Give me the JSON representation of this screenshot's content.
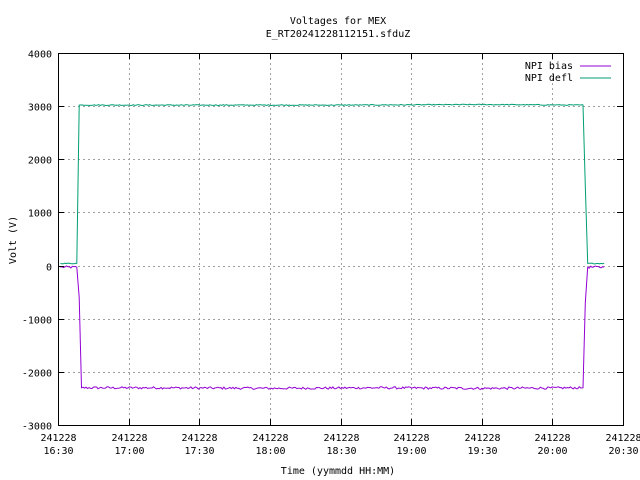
{
  "chart_data": {
    "type": "line",
    "title": "Voltages for MEX",
    "subtitle": "E_RT20241228112151.sfduZ",
    "xlabel": "Time (yymmdd HH:MM)",
    "ylabel": "Volt (V)",
    "xlim": [
      "241228 16:30",
      "241228 20:30"
    ],
    "ylim": [
      -3000,
      4000
    ],
    "x_ticks": [
      {
        "date": "241228",
        "time": "16:30"
      },
      {
        "date": "241228",
        "time": "17:00"
      },
      {
        "date": "241228",
        "time": "17:30"
      },
      {
        "date": "241228",
        "time": "18:00"
      },
      {
        "date": "241228",
        "time": "18:30"
      },
      {
        "date": "241228",
        "time": "19:00"
      },
      {
        "date": "241228",
        "time": "19:30"
      },
      {
        "date": "241228",
        "time": "20:00"
      },
      {
        "date": "241228",
        "time": "20:30"
      }
    ],
    "y_ticks": [
      "4000",
      "3000",
      "2000",
      "1000",
      "0",
      "-1000",
      "-2000",
      "-3000"
    ],
    "grid": true,
    "legend_position": "top-right",
    "series": [
      {
        "name": "NPI bias",
        "color": "#9400d3",
        "points": [
          [
            "241228 16:31",
            -30
          ],
          [
            "241228 16:38",
            -30
          ],
          [
            "241228 16:39",
            -600
          ],
          [
            "241228 16:40",
            -2300
          ],
          [
            "241228 17:15",
            -2300
          ],
          [
            "241228 18:00",
            -2310
          ],
          [
            "241228 18:45",
            -2300
          ],
          [
            "241228 19:30",
            -2310
          ],
          [
            "241228 20:13",
            -2300
          ],
          [
            "241228 20:14",
            -700
          ],
          [
            "241228 20:15",
            -30
          ],
          [
            "241228 20:22",
            -30
          ]
        ]
      },
      {
        "name": "NPI defl",
        "color": "#009e73",
        "points": [
          [
            "241228 16:31",
            40
          ],
          [
            "241228 16:38",
            40
          ],
          [
            "241228 16:39",
            3020
          ],
          [
            "241228 17:30",
            3020
          ],
          [
            "241228 18:30",
            3020
          ],
          [
            "241228 19:30",
            3030
          ],
          [
            "241228 20:13",
            3020
          ],
          [
            "241228 20:14",
            1500
          ],
          [
            "241228 20:15",
            40
          ],
          [
            "241228 20:22",
            40
          ]
        ]
      }
    ]
  }
}
